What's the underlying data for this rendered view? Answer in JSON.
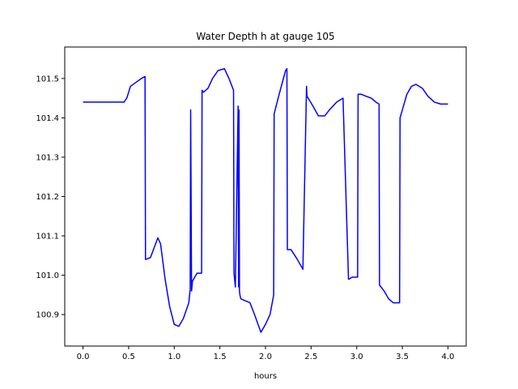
{
  "chart_data": {
    "type": "line",
    "title": "Water Depth h at gauge 105",
    "xlabel": "hours",
    "ylabel": "",
    "xlim": [
      -0.2,
      4.2
    ],
    "ylim": [
      100.82,
      101.58
    ],
    "grid": false,
    "xticks": [
      0.0,
      0.5,
      1.0,
      1.5,
      2.0,
      2.5,
      3.0,
      3.5,
      4.0
    ],
    "xtick_labels": [
      "0.0",
      "0.5",
      "1.0",
      "1.5",
      "2.0",
      "2.5",
      "3.0",
      "3.5",
      "4.0"
    ],
    "yticks": [
      100.9,
      101.0,
      101.1,
      101.2,
      101.3,
      101.4,
      101.5
    ],
    "ytick_labels": [
      "100.9",
      "101.0",
      "101.1",
      "101.2",
      "101.3",
      "101.4",
      "101.5"
    ],
    "series": [
      {
        "color": "#0000ff",
        "x": [
          0.0,
          0.2,
          0.45,
          0.48,
          0.52,
          0.58,
          0.64,
          0.68,
          0.685,
          0.74,
          0.78,
          0.82,
          0.85,
          0.9,
          0.95,
          1.0,
          1.05,
          1.1,
          1.16,
          1.175,
          1.18,
          1.19,
          1.2,
          1.25,
          1.3,
          1.305,
          1.32,
          1.37,
          1.42,
          1.48,
          1.55,
          1.6,
          1.65,
          1.655,
          1.67,
          1.7,
          1.705,
          1.71,
          1.715,
          1.72,
          1.73,
          1.78,
          1.83,
          1.88,
          1.95,
          2.0,
          2.05,
          2.09,
          2.095,
          2.15,
          2.22,
          2.235,
          2.24,
          2.28,
          2.35,
          2.41,
          2.45,
          2.455,
          2.52,
          2.58,
          2.65,
          2.7,
          2.78,
          2.85,
          2.91,
          2.915,
          2.95,
          3.01,
          3.015,
          3.05,
          3.1,
          3.16,
          3.21,
          3.245,
          3.25,
          3.3,
          3.35,
          3.4,
          3.47,
          3.475,
          3.5,
          3.55,
          3.6,
          3.65,
          3.72,
          3.78,
          3.85,
          3.92,
          4.0
        ],
        "y": [
          101.44,
          101.44,
          101.44,
          101.45,
          101.48,
          101.49,
          101.5,
          101.505,
          101.04,
          101.045,
          101.07,
          101.095,
          101.08,
          100.99,
          100.92,
          100.875,
          100.87,
          100.89,
          100.93,
          100.965,
          101.42,
          100.96,
          100.985,
          101.005,
          101.005,
          101.47,
          101.465,
          101.475,
          101.5,
          101.52,
          101.525,
          101.5,
          101.47,
          101.005,
          100.97,
          101.43,
          100.97,
          101.42,
          100.96,
          100.95,
          100.94,
          100.935,
          100.93,
          100.9,
          100.855,
          100.875,
          100.9,
          100.95,
          101.41,
          101.46,
          101.52,
          101.525,
          101.065,
          101.065,
          101.04,
          101.015,
          101.48,
          101.455,
          101.43,
          101.405,
          101.405,
          101.42,
          101.44,
          101.45,
          100.99,
          100.99,
          100.995,
          100.995,
          101.46,
          101.46,
          101.455,
          101.45,
          101.44,
          101.435,
          100.975,
          100.96,
          100.94,
          100.93,
          100.93,
          101.4,
          101.42,
          101.46,
          101.48,
          101.485,
          101.475,
          101.455,
          101.44,
          101.435,
          101.435
        ]
      }
    ]
  }
}
